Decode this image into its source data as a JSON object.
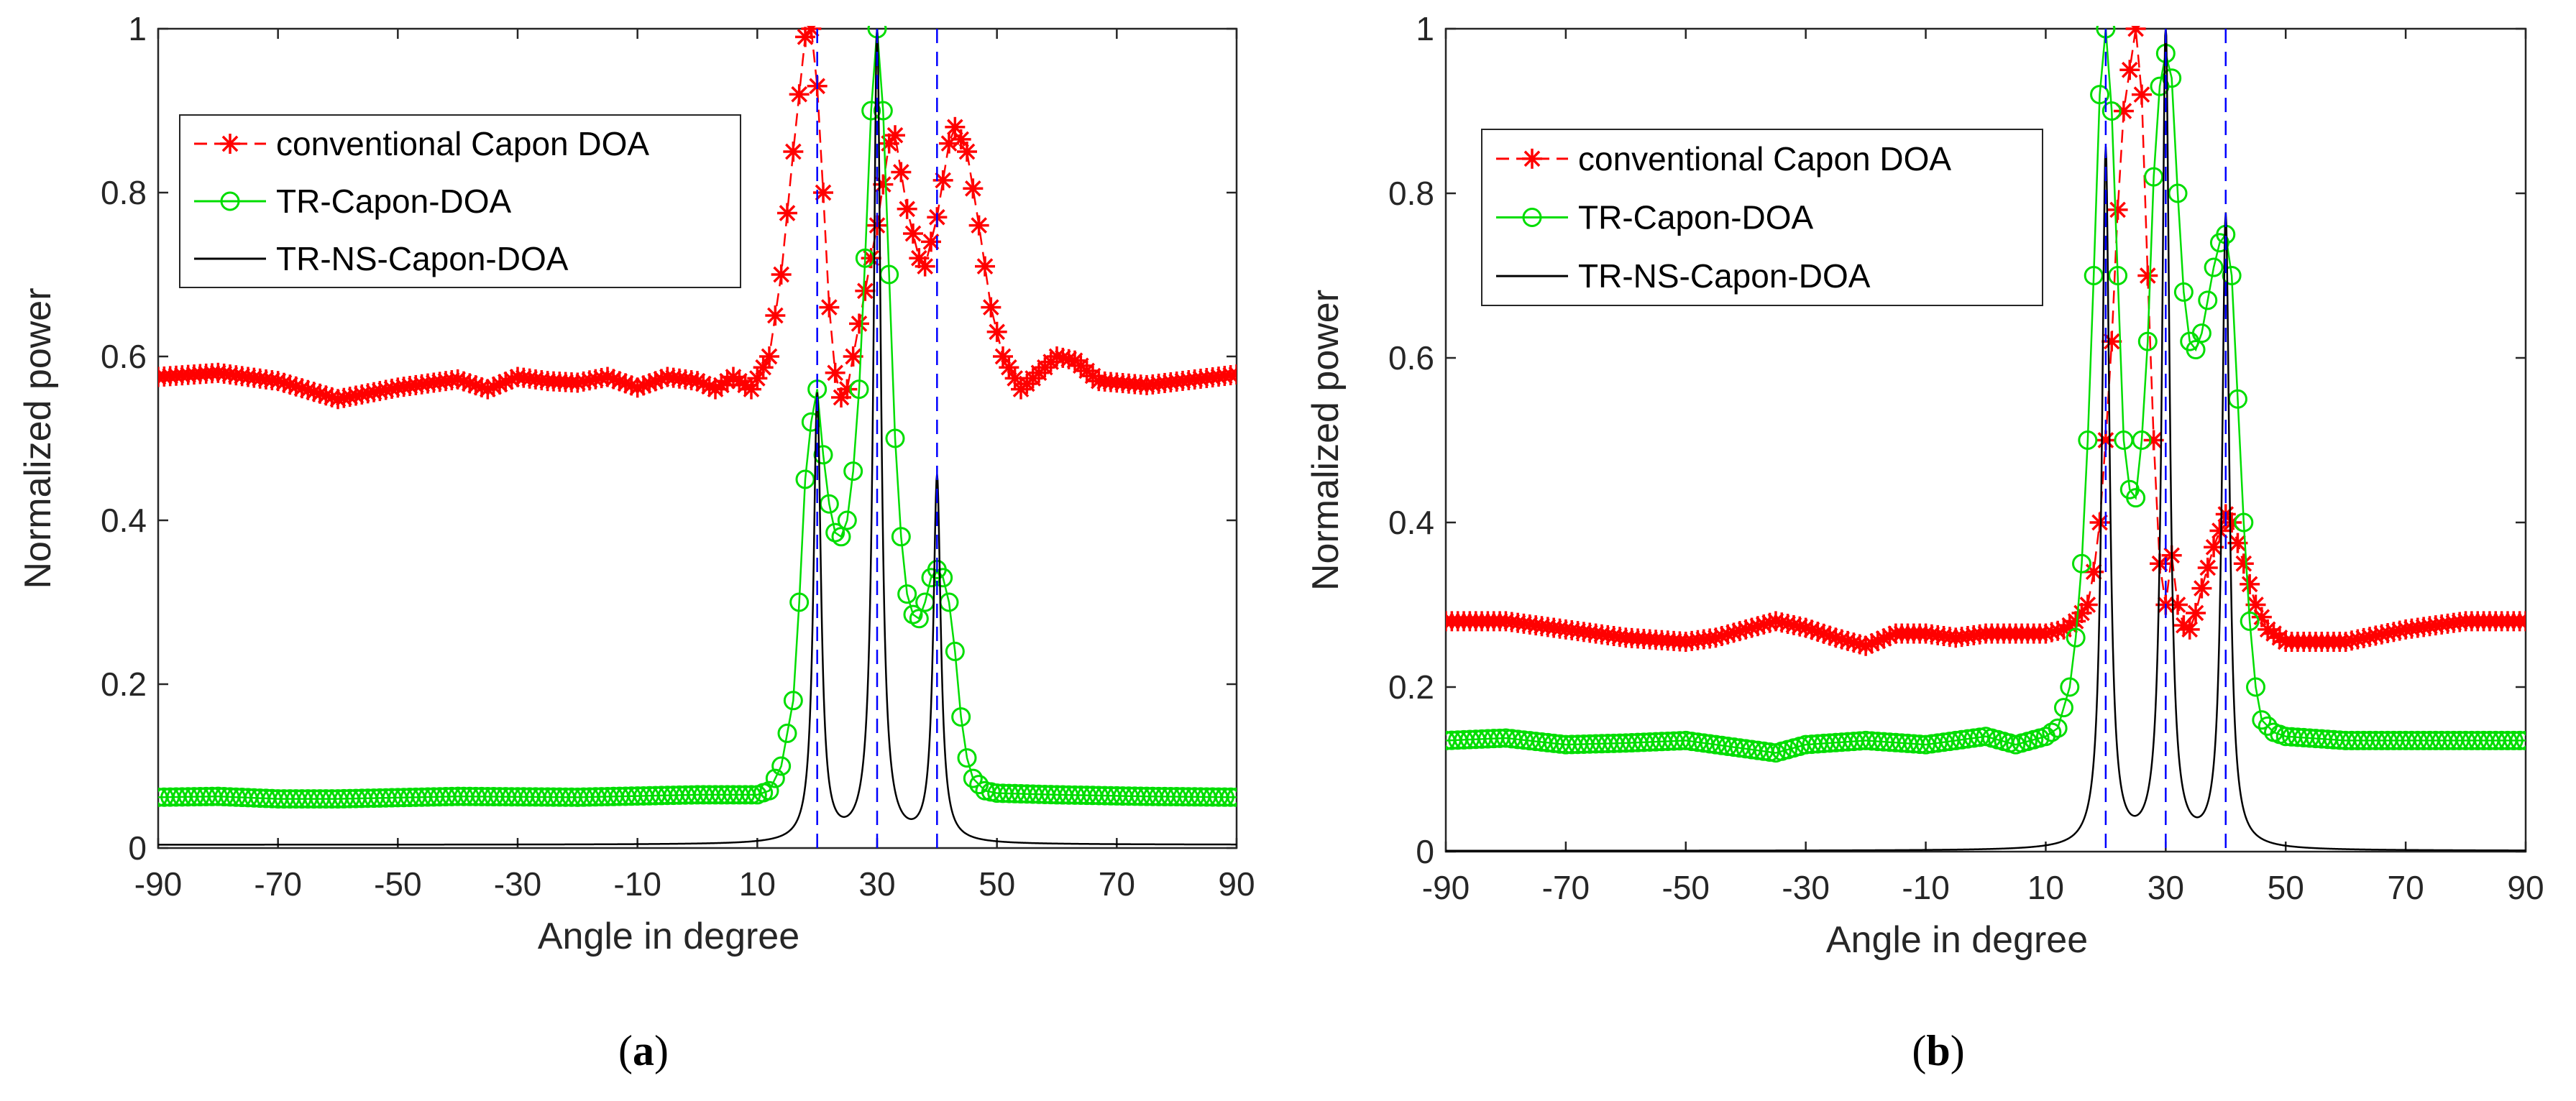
{
  "chart_data": [
    {
      "type": "line",
      "caption": "a",
      "xlabel": "Angle in degree",
      "ylabel": "Normalized power",
      "xlim": [
        -90,
        90
      ],
      "ylim": [
        0,
        1
      ],
      "xticks": [
        "-90",
        "-70",
        "-50",
        "-30",
        "-10",
        "10",
        "30",
        "50",
        "70",
        "90"
      ],
      "yticks": [
        "0",
        "0.2",
        "0.4",
        "0.6",
        "0.8",
        "1"
      ],
      "legend_position": "upper-left",
      "reference_lines_x": [
        20,
        30,
        40
      ],
      "series": [
        {
          "name": "conventional Capon DOA",
          "color": "#ff0000",
          "marker": "*",
          "line": "dashed",
          "points": [
            [
              -90,
              0.575
            ],
            [
              -80,
              0.58
            ],
            [
              -70,
              0.57
            ],
            [
              -60,
              0.548
            ],
            [
              -50,
              0.562
            ],
            [
              -40,
              0.572
            ],
            [
              -35,
              0.56
            ],
            [
              -30,
              0.575
            ],
            [
              -25,
              0.57
            ],
            [
              -20,
              0.568
            ],
            [
              -15,
              0.575
            ],
            [
              -10,
              0.562
            ],
            [
              -5,
              0.575
            ],
            [
              0,
              0.57
            ],
            [
              3,
              0.56
            ],
            [
              6,
              0.575
            ],
            [
              9,
              0.56
            ],
            [
              12,
              0.6
            ],
            [
              14,
              0.7
            ],
            [
              16,
              0.85
            ],
            [
              18,
              0.99
            ],
            [
              19,
              1.0
            ],
            [
              20,
              0.93
            ],
            [
              21,
              0.8
            ],
            [
              22,
              0.66
            ],
            [
              23,
              0.58
            ],
            [
              24,
              0.55
            ],
            [
              25,
              0.56
            ],
            [
              26,
              0.6
            ],
            [
              28,
              0.68
            ],
            [
              30,
              0.76
            ],
            [
              32,
              0.86
            ],
            [
              33,
              0.87
            ],
            [
              35,
              0.78
            ],
            [
              37,
              0.72
            ],
            [
              38,
              0.71
            ],
            [
              40,
              0.77
            ],
            [
              42,
              0.86
            ],
            [
              43,
              0.88
            ],
            [
              45,
              0.85
            ],
            [
              47,
              0.76
            ],
            [
              49,
              0.66
            ],
            [
              51,
              0.6
            ],
            [
              54,
              0.56
            ],
            [
              57,
              0.58
            ],
            [
              60,
              0.6
            ],
            [
              63,
              0.595
            ],
            [
              67,
              0.57
            ],
            [
              75,
              0.565
            ],
            [
              90,
              0.578
            ]
          ]
        },
        {
          "name": "TR-Capon-DOA",
          "color": "#00dd00",
          "marker": "o",
          "line": "solid",
          "points": [
            [
              -90,
              0.062
            ],
            [
              -80,
              0.063
            ],
            [
              -70,
              0.06
            ],
            [
              -60,
              0.06
            ],
            [
              -40,
              0.063
            ],
            [
              -20,
              0.062
            ],
            [
              0,
              0.065
            ],
            [
              10,
              0.065
            ],
            [
              12,
              0.07
            ],
            [
              14,
              0.1
            ],
            [
              16,
              0.18
            ],
            [
              17,
              0.3
            ],
            [
              18,
              0.45
            ],
            [
              19,
              0.52
            ],
            [
              20,
              0.56
            ],
            [
              21,
              0.48
            ],
            [
              22,
              0.42
            ],
            [
              23,
              0.385
            ],
            [
              24,
              0.38
            ],
            [
              25,
              0.4
            ],
            [
              26,
              0.46
            ],
            [
              27,
              0.56
            ],
            [
              28,
              0.72
            ],
            [
              29,
              0.9
            ],
            [
              30,
              1.0
            ],
            [
              31,
              0.9
            ],
            [
              32,
              0.7
            ],
            [
              33,
              0.5
            ],
            [
              34,
              0.38
            ],
            [
              35,
              0.31
            ],
            [
              36,
              0.285
            ],
            [
              37,
              0.28
            ],
            [
              38,
              0.3
            ],
            [
              39,
              0.33
            ],
            [
              40,
              0.34
            ],
            [
              41,
              0.33
            ],
            [
              42,
              0.3
            ],
            [
              43,
              0.24
            ],
            [
              44,
              0.16
            ],
            [
              45,
              0.11
            ],
            [
              46,
              0.085
            ],
            [
              48,
              0.07
            ],
            [
              50,
              0.067
            ],
            [
              60,
              0.065
            ],
            [
              75,
              0.063
            ],
            [
              90,
              0.062
            ]
          ]
        },
        {
          "name": "TR-NS-Capon-DOA",
          "color": "#000000",
          "marker": "",
          "line": "solid",
          "peaks": [
            [
              20,
              0.55
            ],
            [
              30,
              1.0
            ],
            [
              40,
              0.45
            ]
          ],
          "peak_halfwidth_deg": 0.75,
          "baseline": 0.004
        }
      ]
    },
    {
      "type": "line",
      "caption": "b",
      "xlabel": "Angle in degree",
      "ylabel": "Normalized power",
      "xlim": [
        -90,
        90
      ],
      "ylim": [
        0,
        1
      ],
      "xticks": [
        "-90",
        "-70",
        "-50",
        "-30",
        "-10",
        "10",
        "30",
        "50",
        "70",
        "90"
      ],
      "yticks": [
        "0",
        "0.2",
        "0.4",
        "0.6",
        "0.8",
        "1"
      ],
      "legend_position": "upper-left",
      "reference_lines_x": [
        20,
        30,
        40
      ],
      "series": [
        {
          "name": "conventional Capon DOA",
          "color": "#ff0000",
          "marker": "*",
          "line": "dashed",
          "points": [
            [
              -90,
              0.28
            ],
            [
              -80,
              0.28
            ],
            [
              -70,
              0.27
            ],
            [
              -60,
              0.26
            ],
            [
              -50,
              0.255
            ],
            [
              -45,
              0.26
            ],
            [
              -40,
              0.27
            ],
            [
              -35,
              0.28
            ],
            [
              -30,
              0.272
            ],
            [
              -25,
              0.26
            ],
            [
              -20,
              0.25
            ],
            [
              -15,
              0.265
            ],
            [
              -10,
              0.265
            ],
            [
              -5,
              0.26
            ],
            [
              0,
              0.265
            ],
            [
              5,
              0.265
            ],
            [
              10,
              0.265
            ],
            [
              13,
              0.27
            ],
            [
              15,
              0.28
            ],
            [
              17,
              0.3
            ],
            [
              18,
              0.34
            ],
            [
              19,
              0.4
            ],
            [
              20,
              0.5
            ],
            [
              21,
              0.62
            ],
            [
              22,
              0.78
            ],
            [
              23,
              0.9
            ],
            [
              24,
              0.95
            ],
            [
              25,
              1.0
            ],
            [
              26,
              0.92
            ],
            [
              27,
              0.7
            ],
            [
              28,
              0.5
            ],
            [
              29,
              0.35
            ],
            [
              30,
              0.3
            ],
            [
              31,
              0.36
            ],
            [
              32,
              0.3
            ],
            [
              33,
              0.275
            ],
            [
              34,
              0.27
            ],
            [
              35,
              0.29
            ],
            [
              36,
              0.32
            ],
            [
              38,
              0.37
            ],
            [
              40,
              0.41
            ],
            [
              41,
              0.4
            ],
            [
              43,
              0.35
            ],
            [
              45,
              0.3
            ],
            [
              47,
              0.27
            ],
            [
              50,
              0.255
            ],
            [
              60,
              0.255
            ],
            [
              70,
              0.27
            ],
            [
              80,
              0.28
            ],
            [
              90,
              0.28
            ]
          ]
        },
        {
          "name": "TR-Capon-DOA",
          "color": "#00dd00",
          "marker": "o",
          "line": "solid",
          "points": [
            [
              -90,
              0.135
            ],
            [
              -80,
              0.138
            ],
            [
              -70,
              0.13
            ],
            [
              -60,
              0.132
            ],
            [
              -50,
              0.135
            ],
            [
              -40,
              0.125
            ],
            [
              -35,
              0.12
            ],
            [
              -30,
              0.13
            ],
            [
              -20,
              0.135
            ],
            [
              -10,
              0.13
            ],
            [
              0,
              0.14
            ],
            [
              5,
              0.13
            ],
            [
              10,
              0.14
            ],
            [
              12,
              0.15
            ],
            [
              14,
              0.2
            ],
            [
              15,
              0.26
            ],
            [
              16,
              0.35
            ],
            [
              17,
              0.5
            ],
            [
              18,
              0.7
            ],
            [
              19,
              0.92
            ],
            [
              20,
              1.0
            ],
            [
              21,
              0.9
            ],
            [
              22,
              0.7
            ],
            [
              23,
              0.5
            ],
            [
              24,
              0.44
            ],
            [
              25,
              0.43
            ],
            [
              26,
              0.5
            ],
            [
              27,
              0.62
            ],
            [
              28,
              0.82
            ],
            [
              29,
              0.93
            ],
            [
              30,
              0.97
            ],
            [
              31,
              0.94
            ],
            [
              32,
              0.8
            ],
            [
              33,
              0.68
            ],
            [
              34,
              0.62
            ],
            [
              35,
              0.61
            ],
            [
              36,
              0.63
            ],
            [
              37,
              0.67
            ],
            [
              38,
              0.71
            ],
            [
              39,
              0.74
            ],
            [
              40,
              0.75
            ],
            [
              41,
              0.7
            ],
            [
              42,
              0.55
            ],
            [
              43,
              0.4
            ],
            [
              44,
              0.28
            ],
            [
              45,
              0.2
            ],
            [
              46,
              0.16
            ],
            [
              48,
              0.145
            ],
            [
              50,
              0.14
            ],
            [
              60,
              0.135
            ],
            [
              75,
              0.135
            ],
            [
              90,
              0.135
            ]
          ]
        },
        {
          "name": "TR-NS-Capon-DOA",
          "color": "#000000",
          "marker": "",
          "line": "solid",
          "peaks": [
            [
              20,
              0.85
            ],
            [
              30,
              1.0
            ],
            [
              40,
              0.77
            ]
          ],
          "peak_halfwidth_deg": 0.75,
          "baseline": 0.001
        }
      ]
    }
  ]
}
